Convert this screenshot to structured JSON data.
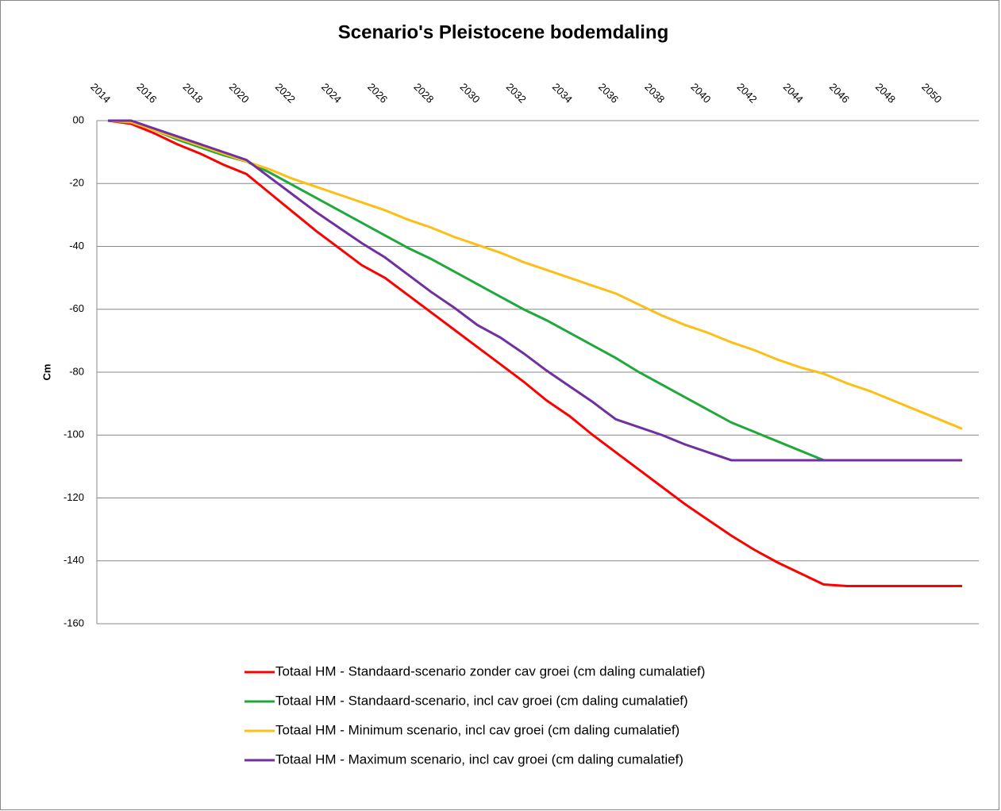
{
  "chart_data": {
    "type": "line",
    "title": "Scenario's Pleistocene bodemdaling",
    "y_label": "Cm",
    "categories": [
      "2014",
      null,
      "2016",
      null,
      "2018",
      null,
      "2020",
      null,
      "2022",
      null,
      "2024",
      null,
      "2026",
      null,
      "2028",
      null,
      "2030",
      null,
      "2032",
      null,
      "2034",
      null,
      "2036",
      null,
      "2038",
      null,
      "2040",
      null,
      "2042",
      null,
      "2044",
      null,
      "2046",
      null,
      "2048",
      null,
      "2050",
      null
    ],
    "ylim": [
      -160,
      0
    ],
    "yticks": [
      {
        "value": 0,
        "label": "00"
      },
      -20,
      -40,
      -60,
      -80,
      -100,
      -120,
      -140,
      -160
    ],
    "grid": true,
    "legend": "bottom",
    "series": [
      {
        "name": "Totaal HM - Standaard-scenario zonder cav groei (cm daling cumalatief)",
        "color": "#ff0000",
        "values": [
          0,
          -1,
          -4,
          -7.5,
          -10.5,
          -14,
          -17,
          -23,
          -29,
          -35,
          -40.5,
          -46,
          -50,
          -55.5,
          -61,
          -66.5,
          -72,
          -77.5,
          -83,
          -89,
          -94,
          -100,
          -105.5,
          -111,
          -116.5,
          -122,
          -127,
          -132,
          -136.5,
          -140.5,
          -144,
          -147.5,
          -148,
          -148,
          -148,
          -148,
          -148,
          -148
        ]
      },
      {
        "name": "Totaal HM - Standaard-scenario, incl cav groei (cm daling cumalatief)",
        "color": "#1fa83c",
        "values": [
          0,
          -0.5,
          -3,
          -6,
          -8.5,
          -11,
          -13,
          -16.5,
          -20.5,
          -24.5,
          -28.5,
          -32.5,
          -36.5,
          -40.5,
          -44,
          -48,
          -52,
          -56,
          -60,
          -63.5,
          -67.5,
          -71.5,
          -75.5,
          -80,
          -84,
          -88,
          -92,
          -96,
          -99,
          -102,
          -105,
          -108,
          -108,
          -108,
          -108,
          -108,
          -108,
          -108
        ]
      },
      {
        "name": "Totaal HM - Minimum scenario, incl cav groei (cm daling cumalatief)",
        "color": "#fcbf17",
        "values": [
          0,
          -0.5,
          -3,
          -5.5,
          -8,
          -10.5,
          -13,
          -15.5,
          -18.5,
          -21,
          -23.5,
          -26,
          -28.5,
          -31.5,
          -34,
          -37,
          -39.5,
          -42,
          -45,
          -47.5,
          -50,
          -52.5,
          -55,
          -58.5,
          -62,
          -65,
          -67.5,
          -70.5,
          -73,
          -76,
          -78.5,
          -80.5,
          -83.5,
          -86,
          -89,
          -92,
          -95,
          -98
        ]
      },
      {
        "name": "Totaal HM - Maximum scenario, incl cav groei (cm daling cumalatief)",
        "color": "#7030a0",
        "values": [
          0,
          0,
          -2.5,
          -5,
          -7.5,
          -10,
          -12.5,
          -18,
          -23.5,
          -29,
          -34,
          -39,
          -43.5,
          -49,
          -54.5,
          -59.5,
          -65,
          -69,
          -74,
          -79.5,
          -84.5,
          -89.5,
          -95,
          -97.5,
          -100,
          -103,
          -105.5,
          -108,
          -108,
          -108,
          -108,
          -108,
          -108,
          -108,
          -108,
          -108,
          -108,
          -108
        ]
      }
    ]
  }
}
